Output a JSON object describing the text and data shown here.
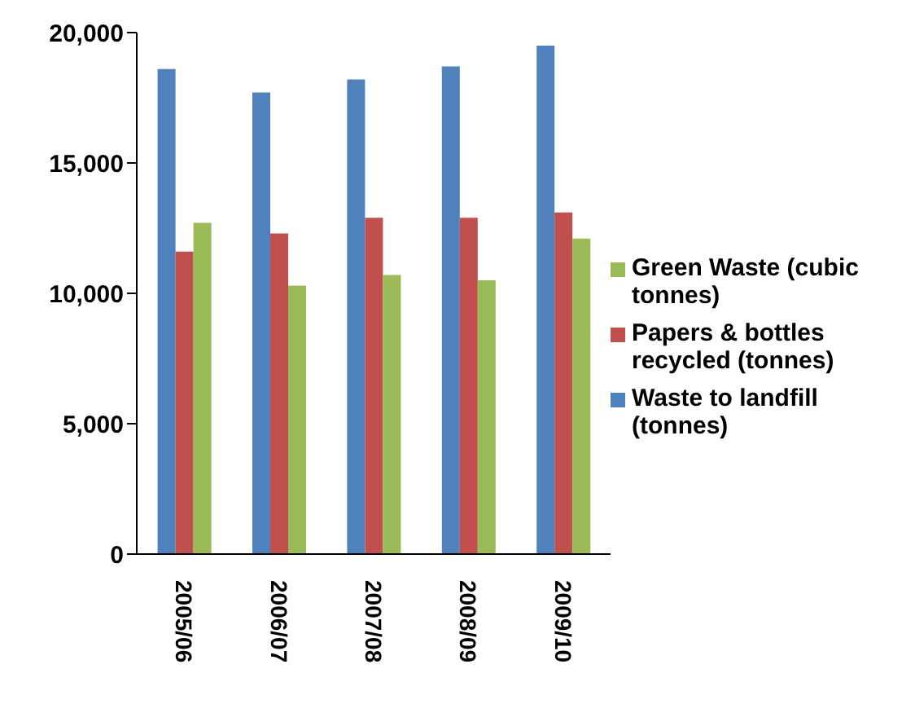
{
  "chart_data": {
    "type": "bar",
    "categories": [
      "2005/06",
      "2006/07",
      "2007/08",
      "2008/09",
      "2009/10"
    ],
    "series": [
      {
        "name": "Waste to landfill (tonnes)",
        "color": "#4f81bd",
        "values": [
          18600,
          17700,
          18200,
          18700,
          19500
        ]
      },
      {
        "name": "Papers & bottles recycled (tonnes)",
        "color": "#c0504d",
        "values": [
          11600,
          12300,
          12900,
          12900,
          13100
        ]
      },
      {
        "name": "Green Waste (cubic tonnes)",
        "color": "#9bbb59",
        "values": [
          12700,
          10300,
          10700,
          10500,
          12100
        ]
      }
    ],
    "ylim": [
      0,
      20000
    ],
    "yticks": [
      {
        "value": 0,
        "label": "0"
      },
      {
        "value": 5000,
        "label": "5,000"
      },
      {
        "value": 10000,
        "label": "10,000"
      },
      {
        "value": 15000,
        "label": "15,000"
      },
      {
        "value": 20000,
        "label": "20,000"
      }
    ],
    "grid": false,
    "legend": "right"
  }
}
